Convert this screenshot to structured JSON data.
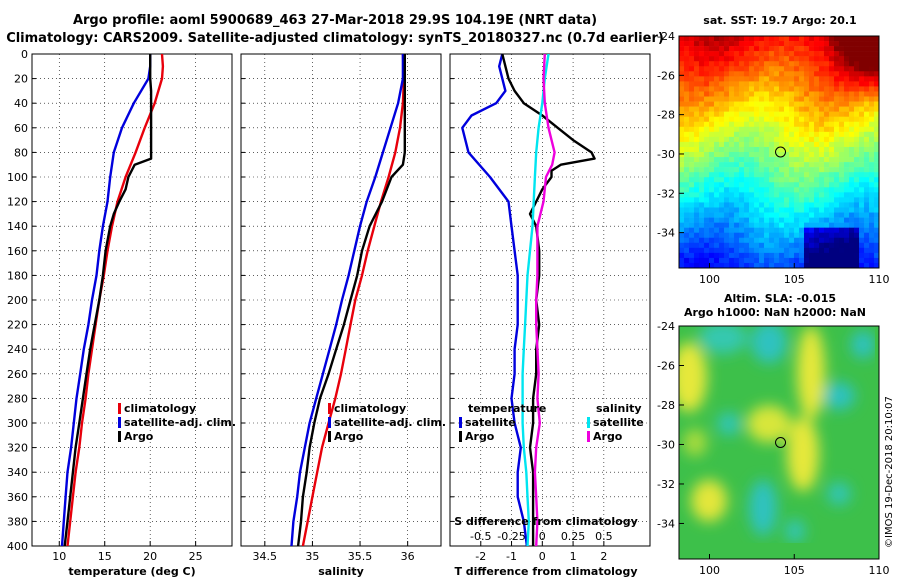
{
  "title_line1": "Argo profile: aoml 5900689_463 27-Mar-2018 29.9S 104.19E (NRT data)",
  "title_line2": "Climatology: CARS2009. Satellite-adjusted climatology: synTS_20180327.nc (0.7d earlier)",
  "depth_ticks": [
    "0",
    "20",
    "40",
    "60",
    "80",
    "100",
    "120",
    "140",
    "160",
    "180",
    "200",
    "220",
    "240",
    "260",
    "280",
    "300",
    "320",
    "340",
    "360",
    "380",
    "400"
  ],
  "colors": {
    "climatology": "#e8000b",
    "satellite": "#0000dd",
    "argo": "#000000",
    "sal_sat": "#00e5f0",
    "sal_argo": "#ee00dd"
  },
  "chart_data": [
    {
      "type": "line",
      "xlabel": "temperature (deg C)",
      "ylabel": "depth",
      "xlim": [
        7,
        29
      ],
      "ylim": [
        400,
        0
      ],
      "xtick_labels": [
        "10",
        "15",
        "20",
        "25"
      ],
      "xtick_values": [
        10,
        15,
        20,
        25
      ],
      "legend": [
        "climatology",
        "satellite-adj. clim.",
        "Argo"
      ],
      "series": [
        {
          "name": "climatology",
          "depth": [
            0,
            10,
            20,
            40,
            60,
            80,
            100,
            120,
            140,
            160,
            180,
            200,
            220,
            240,
            260,
            280,
            300,
            320,
            340,
            360,
            380,
            400
          ],
          "values": [
            21.3,
            21.4,
            21.3,
            20.5,
            19.4,
            18.4,
            17.3,
            16.4,
            15.8,
            15.3,
            14.9,
            14.4,
            14.0,
            13.6,
            13.2,
            12.9,
            12.5,
            12.2,
            11.8,
            11.5,
            11.2,
            10.9
          ]
        },
        {
          "name": "satellite-adj. clim.",
          "depth": [
            0,
            10,
            20,
            40,
            60,
            80,
            100,
            120,
            140,
            160,
            180,
            200,
            220,
            240,
            260,
            280,
            300,
            320,
            340,
            360,
            380,
            400
          ],
          "values": [
            20.0,
            20.0,
            19.8,
            18.2,
            16.9,
            16.0,
            15.6,
            15.3,
            14.8,
            14.4,
            14.1,
            13.6,
            13.2,
            12.7,
            12.3,
            11.9,
            11.6,
            11.3,
            10.9,
            10.7,
            10.5,
            10.3
          ]
        },
        {
          "name": "Argo",
          "depth": [
            0,
            2,
            20,
            30,
            40,
            50,
            65,
            70,
            80,
            85,
            90,
            100,
            110,
            120,
            130,
            140,
            160,
            180,
            200,
            220,
            240,
            260,
            280,
            300,
            320,
            340,
            360,
            380,
            400
          ],
          "values": [
            20.0,
            20.0,
            20.0,
            20.1,
            20.1,
            20.1,
            20.1,
            20.1,
            20.1,
            20.1,
            18.3,
            17.6,
            17.3,
            16.6,
            16.0,
            15.6,
            15.1,
            14.8,
            14.4,
            13.9,
            13.4,
            13.0,
            12.6,
            12.2,
            11.8,
            11.5,
            11.2,
            10.9,
            10.6
          ]
        }
      ]
    },
    {
      "type": "line",
      "xlabel": "salinity",
      "ylabel": "depth",
      "xlim": [
        34.25,
        36.35
      ],
      "ylim": [
        400,
        0
      ],
      "xtick_labels": [
        "34.5",
        "35",
        "35.5",
        "36"
      ],
      "xtick_values": [
        34.5,
        35,
        35.5,
        36
      ],
      "legend": [
        "climatology",
        "satellite-adj. clim.",
        "Argo"
      ],
      "series": [
        {
          "name": "climatology",
          "depth": [
            0,
            20,
            40,
            60,
            80,
            100,
            120,
            140,
            160,
            180,
            200,
            220,
            240,
            260,
            280,
            300,
            320,
            340,
            360,
            380,
            400
          ],
          "values": [
            35.95,
            35.96,
            35.95,
            35.92,
            35.87,
            35.8,
            35.72,
            35.65,
            35.58,
            35.52,
            35.45,
            35.4,
            35.35,
            35.3,
            35.24,
            35.17,
            35.1,
            35.05,
            35.0,
            34.95,
            34.9
          ]
        },
        {
          "name": "satellite-adj. clim.",
          "depth": [
            0,
            20,
            40,
            60,
            80,
            100,
            120,
            140,
            160,
            180,
            200,
            220,
            240,
            260,
            280,
            300,
            320,
            340,
            360,
            380,
            400
          ],
          "values": [
            35.95,
            35.95,
            35.9,
            35.82,
            35.74,
            35.66,
            35.57,
            35.5,
            35.44,
            35.38,
            35.31,
            35.25,
            35.18,
            35.11,
            35.04,
            34.97,
            34.92,
            34.87,
            34.84,
            34.8,
            34.78
          ]
        },
        {
          "name": "Argo",
          "depth": [
            0,
            20,
            40,
            60,
            80,
            90,
            100,
            120,
            140,
            160,
            180,
            200,
            220,
            240,
            260,
            280,
            300,
            320,
            340,
            360,
            380,
            400
          ],
          "values": [
            35.97,
            35.97,
            35.97,
            35.97,
            35.97,
            35.95,
            35.83,
            35.73,
            35.6,
            35.52,
            35.47,
            35.4,
            35.33,
            35.25,
            35.17,
            35.08,
            35.02,
            34.97,
            34.94,
            34.9,
            34.88,
            34.85
          ]
        }
      ]
    },
    {
      "type": "line",
      "xlabel": "T difference from climatology",
      "x2label": "S difference from climatology",
      "ylabel": "depth",
      "xlim": [
        -3,
        3.5
      ],
      "x2lim": [
        -0.75,
        0.875
      ],
      "ylim": [
        400,
        0
      ],
      "xtick_labels": [
        "-2",
        "-1",
        "0",
        "1",
        "2"
      ],
      "xtick_values": [
        -2,
        -1,
        0,
        1,
        2
      ],
      "x2tick_labels": [
        "-0.5",
        "-0.25",
        "0",
        "0.25",
        "0.5"
      ],
      "x2tick_values": [
        -0.5,
        -0.25,
        0,
        0.25,
        0.5
      ],
      "legend_title_t": "temperature",
      "legend_title_s": "salinity",
      "legend_t": [
        "satellite",
        "Argo"
      ],
      "legend_s": [
        "satellite",
        "Argo"
      ],
      "series": [
        {
          "name": "temperature satellite",
          "axis": "T",
          "depth": [
            0,
            10,
            20,
            30,
            40,
            50,
            60,
            80,
            100,
            120,
            140,
            160,
            180,
            200,
            220,
            240,
            260,
            280,
            300,
            320,
            340,
            360,
            380,
            400
          ],
          "values": [
            -1.3,
            -1.4,
            -1.3,
            -1.2,
            -1.5,
            -2.3,
            -2.6,
            -2.4,
            -1.7,
            -1.1,
            -1.0,
            -0.9,
            -0.8,
            -0.8,
            -0.8,
            -0.9,
            -0.9,
            -1.0,
            -0.9,
            -0.7,
            -0.8,
            -0.8,
            -0.6,
            -0.5
          ]
        },
        {
          "name": "temperature Argo",
          "axis": "T",
          "depth": [
            0,
            10,
            20,
            30,
            40,
            50,
            60,
            70,
            80,
            85,
            90,
            95,
            100,
            110,
            120,
            130,
            140,
            160,
            180,
            200,
            220,
            240,
            260,
            280,
            300,
            320,
            340,
            360,
            380,
            400
          ],
          "values": [
            -1.3,
            -1.2,
            -1.1,
            -0.9,
            -0.6,
            0.0,
            0.5,
            1.0,
            1.6,
            1.7,
            0.6,
            0.3,
            0.3,
            0.0,
            -0.2,
            -0.4,
            -0.2,
            -0.1,
            -0.1,
            -0.2,
            -0.1,
            -0.2,
            -0.2,
            -0.3,
            -0.3,
            -0.4,
            -0.3,
            -0.3,
            -0.3,
            -0.3
          ]
        },
        {
          "name": "salinity satellite",
          "axis": "S",
          "depth": [
            0,
            20,
            40,
            60,
            80,
            100,
            120,
            140,
            160,
            180,
            200,
            220,
            240,
            260,
            280,
            300,
            320,
            340,
            360,
            380,
            400
          ],
          "values": [
            0.05,
            0.02,
            0.0,
            -0.03,
            -0.05,
            -0.06,
            -0.07,
            -0.08,
            -0.1,
            -0.12,
            -0.13,
            -0.14,
            -0.15,
            -0.16,
            -0.16,
            -0.16,
            -0.15,
            -0.13,
            -0.12,
            -0.11,
            -0.12
          ]
        },
        {
          "name": "salinity Argo",
          "axis": "S",
          "depth": [
            0,
            20,
            40,
            60,
            80,
            90,
            100,
            120,
            140,
            160,
            180,
            200,
            220,
            240,
            260,
            280,
            300,
            320,
            340,
            360,
            380,
            400
          ],
          "values": [
            0.02,
            0.01,
            0.02,
            0.05,
            0.1,
            0.08,
            0.03,
            0.01,
            -0.04,
            -0.04,
            -0.04,
            -0.05,
            -0.05,
            -0.04,
            -0.03,
            -0.04,
            -0.02,
            -0.05,
            -0.06,
            -0.05,
            -0.04,
            -0.05
          ]
        }
      ]
    },
    {
      "type": "heatmap",
      "title": "sat. SST: 19.7 Argo: 20.1",
      "xlim": [
        98.2,
        110
      ],
      "ylim": [
        -35.8,
        -24
      ],
      "xtick_labels": [
        "100",
        "105",
        "110"
      ],
      "xtick_values": [
        100,
        105,
        110
      ],
      "ytick_labels": [
        "-24",
        "-26",
        "-28",
        "-30",
        "-32",
        "-34"
      ],
      "ytick_values": [
        -24,
        -26,
        -28,
        -30,
        -32,
        -34
      ],
      "marker": {
        "lon": 104.19,
        "lat": -29.9
      }
    },
    {
      "type": "heatmap",
      "title_line1": "Altim. SLA: -0.015",
      "title_line2": "Argo h1000: NaN h2000: NaN",
      "xlim": [
        98.2,
        110
      ],
      "ylim": [
        -35.8,
        -24
      ],
      "xtick_labels": [
        "100",
        "105",
        "110"
      ],
      "xtick_values": [
        100,
        105,
        110
      ],
      "ytick_labels": [
        "-24",
        "-26",
        "-28",
        "-30",
        "-32",
        "-34"
      ],
      "ytick_values": [
        -24,
        -26,
        -28,
        -30,
        -32,
        -34
      ],
      "marker": {
        "lon": 104.19,
        "lat": -29.9
      }
    }
  ],
  "copyright": "©IMOS 19-Dec-2018 20:10:07"
}
